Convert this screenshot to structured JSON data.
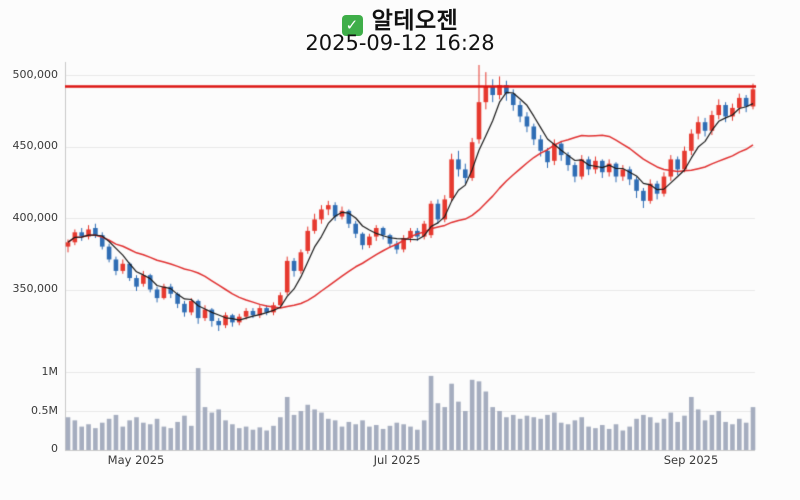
{
  "header": {
    "check_glyph": "✓",
    "title": "알테오젠",
    "subtitle": "2025-09-12 16:28"
  },
  "colors": {
    "up": "#e6392f",
    "down": "#2f6db4",
    "volume": "#a5adbf",
    "ref_line": "#dd1512",
    "ma_short": "#1a1a1a",
    "ma_long": "#e03030",
    "grid": "#e9e9e9",
    "axis": "#c9c9c9"
  },
  "axes": {
    "price_ticks": [
      "500,000",
      "450,000",
      "400,000",
      "350,000"
    ],
    "volume_ticks": [
      "1M",
      "0.5M",
      "0"
    ],
    "x_ticks": [
      "May 2025",
      "Jul 2025",
      "Sep 2025"
    ]
  },
  "chart_data": {
    "type": "candlestick_with_volume",
    "title": "알테오젠",
    "timestamp": "2025-09-12 16:28",
    "xlabel": "",
    "ylabel": "",
    "price_axis": {
      "ticks": [
        500000,
        450000,
        400000,
        350000
      ],
      "visible_range": [
        318000,
        510000
      ]
    },
    "volume_axis": {
      "ticks_millions": [
        1.0,
        0.5,
        0
      ],
      "unit": "M"
    },
    "reference_line": 492000,
    "ma_periods": {
      "short": 5,
      "long": 20
    },
    "dates": [
      "2025-04-17",
      "2025-04-18",
      "2025-04-21",
      "2025-04-22",
      "2025-04-23",
      "2025-04-24",
      "2025-04-25",
      "2025-04-28",
      "2025-04-29",
      "2025-04-30",
      "2025-05-02",
      "2025-05-07",
      "2025-05-08",
      "2025-05-09",
      "2025-05-12",
      "2025-05-13",
      "2025-05-14",
      "2025-05-15",
      "2025-05-16",
      "2025-05-19",
      "2025-05-20",
      "2025-05-21",
      "2025-05-22",
      "2025-05-23",
      "2025-05-26",
      "2025-05-27",
      "2025-05-28",
      "2025-05-29",
      "2025-05-30",
      "2025-06-02",
      "2025-06-04",
      "2025-06-05",
      "2025-06-09",
      "2025-06-10",
      "2025-06-11",
      "2025-06-12",
      "2025-06-13",
      "2025-06-16",
      "2025-06-17",
      "2025-06-18",
      "2025-06-19",
      "2025-06-20",
      "2025-06-23",
      "2025-06-24",
      "2025-06-25",
      "2025-06-26",
      "2025-06-27",
      "2025-06-30",
      "2025-07-01",
      "2025-07-02",
      "2025-07-03",
      "2025-07-04",
      "2025-07-07",
      "2025-07-08",
      "2025-07-09",
      "2025-07-10",
      "2025-07-11",
      "2025-07-14",
      "2025-07-15",
      "2025-07-16",
      "2025-07-17",
      "2025-07-18",
      "2025-07-21",
      "2025-07-22",
      "2025-07-23",
      "2025-07-24",
      "2025-07-25",
      "2025-07-28",
      "2025-07-29",
      "2025-07-30",
      "2025-07-31",
      "2025-08-01",
      "2025-08-04",
      "2025-08-05",
      "2025-08-06",
      "2025-08-07",
      "2025-08-08",
      "2025-08-11",
      "2025-08-12",
      "2025-08-13",
      "2025-08-14",
      "2025-08-18",
      "2025-08-19",
      "2025-08-20",
      "2025-08-21",
      "2025-08-22",
      "2025-08-25",
      "2025-08-26",
      "2025-08-27",
      "2025-08-28",
      "2025-08-29",
      "2025-09-01",
      "2025-09-02",
      "2025-09-03",
      "2025-09-04",
      "2025-09-05",
      "2025-09-08",
      "2025-09-09",
      "2025-09-10",
      "2025-09-11",
      "2025-09-12"
    ],
    "open": [
      380000,
      383000,
      390000,
      387000,
      393000,
      388000,
      380000,
      371000,
      363000,
      368000,
      358000,
      354000,
      360000,
      350000,
      344000,
      352000,
      347000,
      340000,
      334000,
      342000,
      330000,
      336000,
      328000,
      325000,
      332000,
      327000,
      331000,
      335000,
      332000,
      337000,
      334000,
      339000,
      348000,
      370000,
      363000,
      377000,
      391000,
      399000,
      406000,
      409000,
      401000,
      405000,
      396000,
      389000,
      381000,
      387000,
      393000,
      388000,
      382000,
      378000,
      386000,
      391000,
      387000,
      388000,
      410000,
      399000,
      414000,
      441000,
      434000,
      428000,
      455000,
      481000,
      492000,
      486000,
      493000,
      487000,
      479000,
      471000,
      464000,
      455000,
      447000,
      440000,
      452000,
      444000,
      437000,
      429000,
      441000,
      434000,
      440000,
      432000,
      438000,
      429000,
      434000,
      427000,
      419000,
      412000,
      424000,
      417000,
      429000,
      441000,
      434000,
      447000,
      459000,
      467000,
      461000,
      472000,
      479000,
      471000,
      477000,
      484000,
      478000
    ],
    "high": [
      385000,
      392000,
      393000,
      395000,
      396000,
      390000,
      382000,
      373000,
      371000,
      369000,
      360000,
      363000,
      361000,
      352000,
      354000,
      354000,
      348000,
      342000,
      344000,
      343000,
      339000,
      337000,
      330000,
      334000,
      333000,
      333000,
      337000,
      337000,
      339000,
      339000,
      341000,
      348000,
      373000,
      372000,
      378000,
      394000,
      403000,
      409000,
      412000,
      411000,
      408000,
      406000,
      398000,
      390000,
      389000,
      395000,
      394000,
      389000,
      384000,
      388000,
      393000,
      393000,
      398000,
      412000,
      413000,
      416000,
      445000,
      447000,
      438000,
      456000,
      507000,
      502000,
      497000,
      499000,
      496000,
      490000,
      482000,
      474000,
      466000,
      458000,
      449000,
      455000,
      454000,
      446000,
      439000,
      444000,
      443000,
      443000,
      441000,
      441000,
      439000,
      437000,
      436000,
      429000,
      421000,
      427000,
      426000,
      432000,
      444000,
      443000,
      450000,
      462000,
      471000,
      470000,
      475000,
      483000,
      481000,
      480000,
      487000,
      486000,
      494000
    ],
    "low": [
      376000,
      381000,
      384000,
      385000,
      386000,
      378000,
      369000,
      360000,
      361000,
      356000,
      349000,
      352000,
      348000,
      341000,
      343000,
      344000,
      337000,
      331000,
      332000,
      326000,
      328000,
      324000,
      321000,
      323000,
      324000,
      325000,
      329000,
      330000,
      330000,
      332000,
      332000,
      337000,
      346000,
      359000,
      361000,
      375000,
      389000,
      396000,
      402000,
      398000,
      399000,
      393000,
      386000,
      378000,
      379000,
      384000,
      385000,
      379000,
      375000,
      376000,
      383000,
      384000,
      385000,
      386000,
      396000,
      397000,
      412000,
      429000,
      424000,
      426000,
      452000,
      476000,
      481000,
      483000,
      482000,
      475000,
      467000,
      460000,
      451000,
      443000,
      435000,
      437000,
      440000,
      433000,
      425000,
      427000,
      430000,
      431000,
      428000,
      429000,
      425000,
      426000,
      423000,
      414000,
      407000,
      410000,
      413000,
      415000,
      426000,
      430000,
      432000,
      444000,
      455000,
      457000,
      458000,
      469000,
      467000,
      468000,
      473000,
      474000,
      476000
    ],
    "close": [
      383000,
      390000,
      387000,
      392000,
      388000,
      380000,
      371000,
      363000,
      368000,
      358000,
      352000,
      360000,
      350000,
      344000,
      352000,
      347000,
      340000,
      334000,
      342000,
      330000,
      336000,
      328000,
      325000,
      332000,
      327000,
      331000,
      335000,
      332000,
      337000,
      334000,
      339000,
      346000,
      370000,
      363000,
      376000,
      391000,
      399000,
      406000,
      409000,
      401000,
      405000,
      396000,
      389000,
      381000,
      387000,
      393000,
      388000,
      382000,
      378000,
      386000,
      391000,
      387000,
      396000,
      410000,
      399000,
      413000,
      441000,
      434000,
      428000,
      453000,
      481000,
      492000,
      486000,
      493000,
      487000,
      479000,
      471000,
      464000,
      455000,
      447000,
      439000,
      452000,
      444000,
      437000,
      429000,
      441000,
      434000,
      440000,
      432000,
      438000,
      429000,
      434000,
      427000,
      419000,
      412000,
      424000,
      417000,
      429000,
      441000,
      434000,
      447000,
      459000,
      467000,
      461000,
      472000,
      479000,
      471000,
      477000,
      484000,
      478000,
      490000
    ],
    "volume_millions": [
      0.42,
      0.38,
      0.3,
      0.33,
      0.28,
      0.35,
      0.4,
      0.45,
      0.3,
      0.38,
      0.42,
      0.35,
      0.33,
      0.4,
      0.3,
      0.28,
      0.36,
      0.44,
      0.31,
      1.05,
      0.55,
      0.48,
      0.52,
      0.38,
      0.33,
      0.28,
      0.3,
      0.26,
      0.29,
      0.25,
      0.31,
      0.42,
      0.68,
      0.45,
      0.5,
      0.58,
      0.52,
      0.48,
      0.4,
      0.38,
      0.3,
      0.36,
      0.33,
      0.38,
      0.3,
      0.32,
      0.27,
      0.31,
      0.35,
      0.33,
      0.3,
      0.26,
      0.38,
      0.95,
      0.6,
      0.55,
      0.85,
      0.62,
      0.5,
      0.9,
      0.88,
      0.75,
      0.55,
      0.5,
      0.42,
      0.45,
      0.4,
      0.44,
      0.42,
      0.4,
      0.45,
      0.48,
      0.35,
      0.33,
      0.38,
      0.42,
      0.3,
      0.28,
      0.32,
      0.27,
      0.33,
      0.25,
      0.3,
      0.4,
      0.45,
      0.42,
      0.35,
      0.4,
      0.48,
      0.36,
      0.44,
      0.68,
      0.52,
      0.38,
      0.45,
      0.5,
      0.36,
      0.33,
      0.4,
      0.35,
      0.55
    ]
  }
}
